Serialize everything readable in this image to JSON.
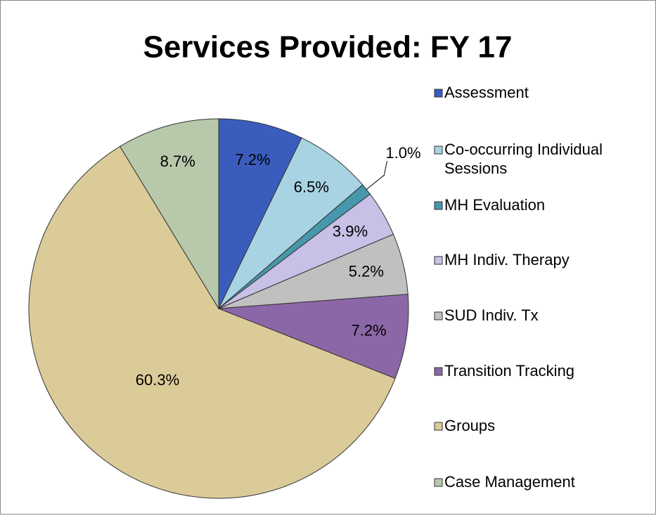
{
  "chart_data": {
    "type": "pie",
    "title": "Services Provided: FY 17",
    "categories": [
      "Assessment",
      "Co-occurring Individual Sessions",
      "MH Evaluation",
      "MH Indiv. Therapy",
      "SUD Indiv. Tx",
      "Transition Tracking",
      "Groups",
      "Case Management"
    ],
    "values": [
      7.2,
      6.5,
      1.0,
      3.9,
      5.2,
      7.2,
      60.3,
      8.7
    ],
    "value_labels": [
      "7.2%",
      "6.5%",
      "1.0%",
      "3.9%",
      "5.2%",
      "7.2%",
      "60.3%",
      "8.7%"
    ],
    "colors": [
      "#3a5dbd",
      "#a8d3e2",
      "#4797ad",
      "#c8c0e6",
      "#c0c0c0",
      "#8c67a7",
      "#dbcb99",
      "#b8c8ab"
    ],
    "legend": "right"
  }
}
